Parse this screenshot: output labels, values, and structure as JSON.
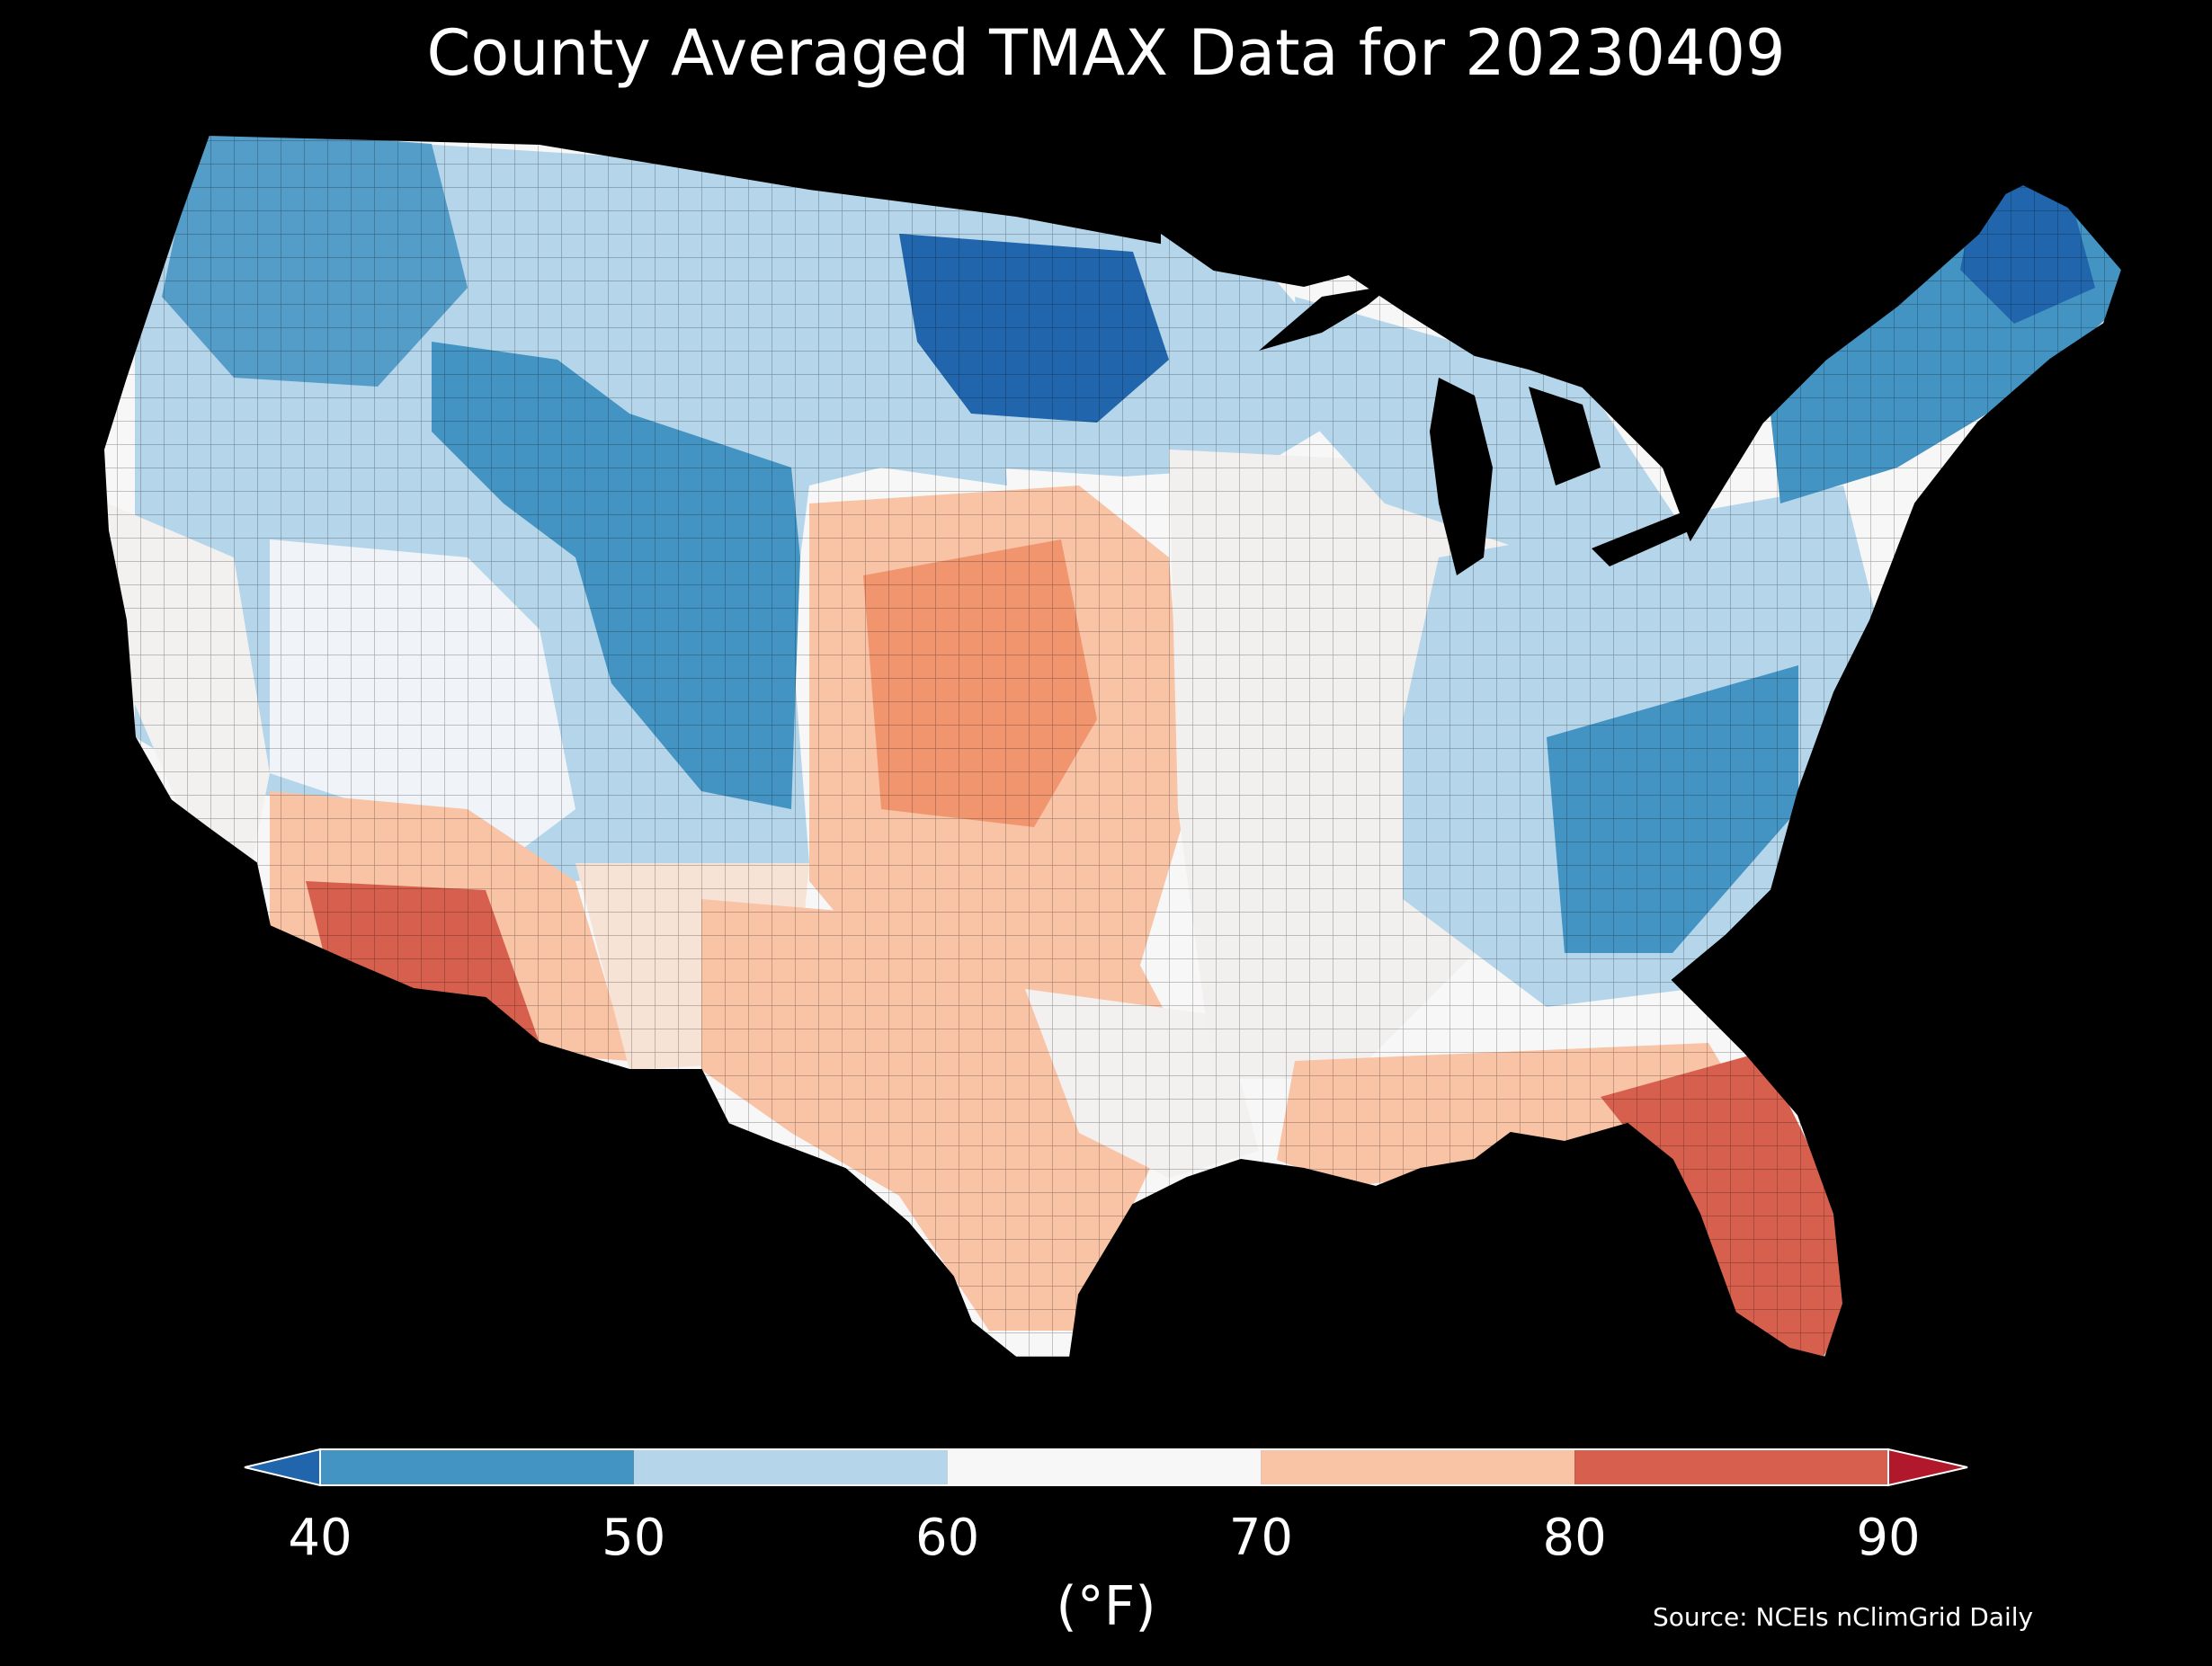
{
  "title": "County Averaged TMAX Data for 20230409",
  "source": "Source: NCEIs nClimGrid Daily",
  "colorbar": {
    "unit_label": "(°F)",
    "ticks": [
      "40",
      "50",
      "60",
      "70",
      "80",
      "90"
    ],
    "bins": [
      {
        "range": "<40",
        "color": "#2166ac"
      },
      {
        "range": "40-50",
        "color": "#4393c3"
      },
      {
        "range": "50-60",
        "color": "#b5d6ea"
      },
      {
        "range": "60-70",
        "color": "#f7f7f7"
      },
      {
        "range": "70-80",
        "color": "#f9c3a6"
      },
      {
        "range": "80-90",
        "color": "#d6604d"
      },
      {
        "range": ">90",
        "color": "#b2182b"
      }
    ]
  },
  "map": {
    "region": "Contiguous United States",
    "variable": "TMAX",
    "regions": [
      {
        "name": "pacific-northwest",
        "value_bin": "40-50"
      },
      {
        "name": "northern-rockies",
        "value_bin": "50-60"
      },
      {
        "name": "wyoming-colorado-mountains",
        "value_bin": "40-50"
      },
      {
        "name": "great-basin",
        "value_bin": "60-70"
      },
      {
        "name": "california-coast",
        "value_bin": "60-70"
      },
      {
        "name": "desert-southwest",
        "value_bin": "80-90"
      },
      {
        "name": "new-mexico",
        "value_bin": "70-80"
      },
      {
        "name": "northern-plains-dakotas-minnesota",
        "value_bin": "<40"
      },
      {
        "name": "central-plains-kansas-oklahoma",
        "value_bin": "70-80"
      },
      {
        "name": "texas",
        "value_bin": "70-80"
      },
      {
        "name": "midwest-great-lakes",
        "value_bin": "50-60"
      },
      {
        "name": "mississippi-valley",
        "value_bin": "60-70"
      },
      {
        "name": "appalachians",
        "value_bin": "40-50"
      },
      {
        "name": "mid-atlantic",
        "value_bin": "50-60"
      },
      {
        "name": "northeast-new-england",
        "value_bin": "40-50"
      },
      {
        "name": "maine-north",
        "value_bin": "<40"
      },
      {
        "name": "gulf-coast",
        "value_bin": "70-80"
      },
      {
        "name": "florida-peninsula",
        "value_bin": "80-90"
      }
    ]
  }
}
